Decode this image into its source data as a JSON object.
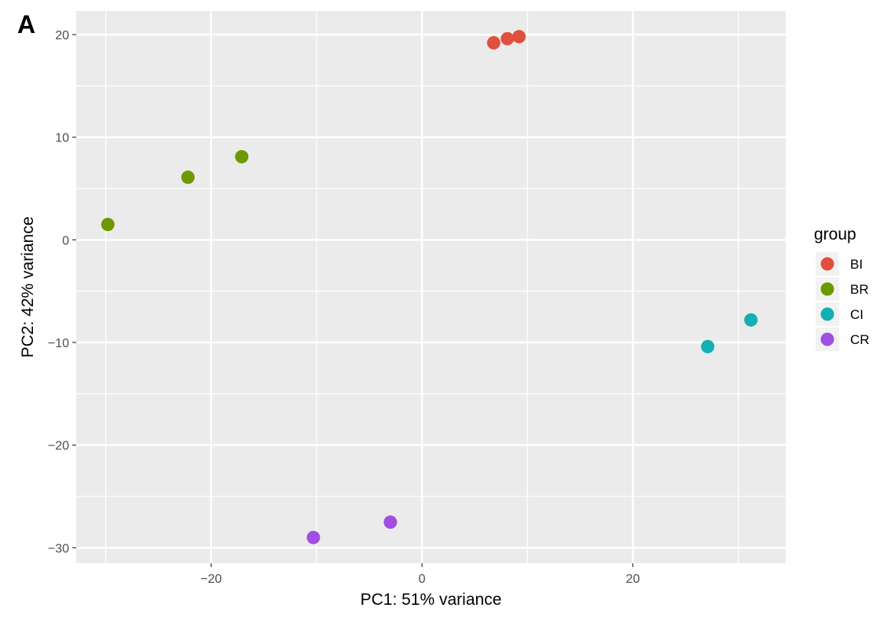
{
  "panel_label": "A",
  "chart_data": {
    "type": "scatter",
    "xlabel": "PC1: 51% variance",
    "ylabel": "PC2: 42% variance",
    "xlim": [
      -32.8,
      34.5
    ],
    "ylim": [
      -31.5,
      22.3
    ],
    "x_ticks": [
      -20,
      0,
      20
    ],
    "y_ticks": [
      -30,
      -20,
      -10,
      0,
      10,
      20
    ],
    "x_tick_labels": [
      "−20",
      "0",
      "20"
    ],
    "y_tick_labels": [
      "−30",
      "−20",
      "−10",
      "0",
      "10",
      "20"
    ],
    "grid": true,
    "legend": {
      "title": "group",
      "position": "right"
    },
    "series": [
      {
        "name": "BI",
        "color": "#E0503F",
        "points": [
          [
            6.8,
            19.2
          ],
          [
            8.1,
            19.6
          ],
          [
            9.2,
            19.8
          ]
        ]
      },
      {
        "name": "BR",
        "color": "#6D9900",
        "points": [
          [
            -29.8,
            1.5
          ],
          [
            -22.2,
            6.1
          ],
          [
            -17.1,
            8.1
          ]
        ]
      },
      {
        "name": "CI",
        "color": "#12B0B2",
        "points": [
          [
            27.1,
            -10.4
          ],
          [
            31.2,
            -7.8
          ]
        ]
      },
      {
        "name": "CR",
        "color": "#A14EE3",
        "points": [
          [
            -10.3,
            -29.0
          ],
          [
            -3.0,
            -27.5
          ]
        ]
      }
    ]
  }
}
